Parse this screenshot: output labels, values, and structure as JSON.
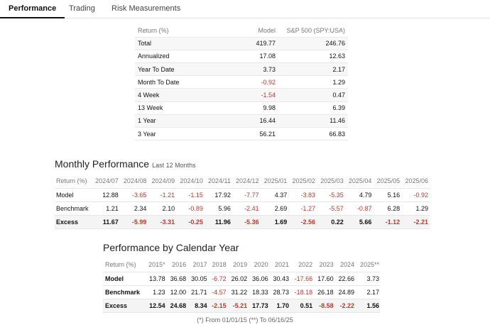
{
  "tabs": [
    {
      "label": "Performance",
      "active": true
    },
    {
      "label": "Trading",
      "active": false
    },
    {
      "label": "Risk Measurements",
      "active": false
    }
  ],
  "returns": {
    "headers": [
      "Return (%)",
      "Model",
      "S&P 500 (SPY:USA)"
    ],
    "rows": [
      {
        "label": "Total",
        "model": "419.77",
        "sp": "246.76"
      },
      {
        "label": "Annualized",
        "model": "17.08",
        "sp": "12.63"
      },
      {
        "label": "Year To Date",
        "model": "3.73",
        "sp": "2.17"
      },
      {
        "label": "Month To Date",
        "model": "-0.92",
        "sp": "1.29"
      },
      {
        "label": "4 Week",
        "model": "-1.54",
        "sp": "0.47"
      },
      {
        "label": "13 Week",
        "model": "9.98",
        "sp": "6.39"
      },
      {
        "label": "1 Year",
        "model": "16.44",
        "sp": "11.46"
      },
      {
        "label": "3 Year",
        "model": "56.21",
        "sp": "66.83"
      }
    ]
  },
  "monthly": {
    "title": "Monthly Performance",
    "subtitle": "Last 12 Months",
    "header_label": "Return (%)",
    "columns": [
      "2024/07",
      "2024/08",
      "2024/09",
      "2024/10",
      "2024/11",
      "2024/12",
      "2025/01",
      "2025/02",
      "2025/03",
      "2025/04",
      "2025/05",
      "2025/06"
    ],
    "rows": [
      {
        "label": "Model",
        "values": [
          "12.88",
          "-3.65",
          "-1.21",
          "-1.15",
          "17.92",
          "-7.77",
          "4.37",
          "-3.83",
          "-5.35",
          "4.79",
          "5.16",
          "-0.92"
        ]
      },
      {
        "label": "Benchmark",
        "values": [
          "1.21",
          "2.34",
          "2.10",
          "-0.89",
          "5.96",
          "-2.41",
          "2.69",
          "-1.27",
          "-5.57",
          "-0.87",
          "6.28",
          "1.29"
        ]
      },
      {
        "label": "Excess",
        "values": [
          "11.67",
          "-5.99",
          "-3.31",
          "-0.25",
          "11.96",
          "-5.36",
          "1.69",
          "-2.56",
          "0.22",
          "5.66",
          "-1.12",
          "-2.21"
        ]
      }
    ]
  },
  "calendar": {
    "title": "Performance by Calendar Year",
    "header_label": "Return (%)",
    "columns": [
      "2015*",
      "2016",
      "2017",
      "2018",
      "2019",
      "2020",
      "2021",
      "2022",
      "2023",
      "2024",
      "2025**"
    ],
    "rows": [
      {
        "label": "Model",
        "values": [
          "13.78",
          "36.68",
          "30.05",
          "-6.72",
          "26.02",
          "36.06",
          "30.43",
          "-17.66",
          "17.60",
          "22.66",
          "3.73"
        ]
      },
      {
        "label": "Benchmark",
        "values": [
          "1.23",
          "12.00",
          "21.71",
          "-4.57",
          "31.22",
          "18.33",
          "28.73",
          "-18.18",
          "26.18",
          "24.89",
          "2.17"
        ]
      },
      {
        "label": "Excess",
        "values": [
          "12.54",
          "24.68",
          "8.34",
          "-2.15",
          "-5.21",
          "17.73",
          "1.70",
          "0.51",
          "-8.58",
          "-2.22",
          "1.56"
        ]
      }
    ],
    "footnote": "(*) From 01/01/15  (**) To 06/16/25"
  }
}
